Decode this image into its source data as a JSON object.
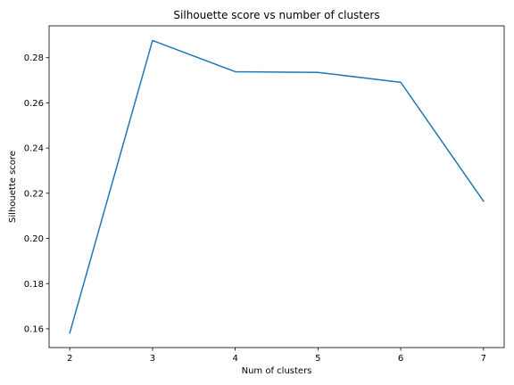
{
  "chart_data": {
    "type": "line",
    "title": "Silhouette score vs number of clusters",
    "xlabel": "Num of clusters",
    "ylabel": "Silhouette score",
    "x": [
      2,
      3,
      4,
      5,
      6,
      7
    ],
    "series": [
      {
        "values": [
          0.1582,
          0.2876,
          0.2738,
          0.2735,
          0.2691,
          0.2165
        ]
      }
    ],
    "xlim": [
      1.75,
      7.25
    ],
    "ylim": [
      0.1517,
      0.2941
    ],
    "xticks": [
      2,
      3,
      4,
      5,
      6,
      7
    ],
    "xtick_labels": [
      "2",
      "3",
      "4",
      "5",
      "6",
      "7"
    ],
    "yticks": [
      0.16,
      0.18,
      0.2,
      0.22,
      0.24,
      0.26,
      0.28
    ],
    "ytick_labels": [
      "0.16",
      "0.18",
      "0.20",
      "0.22",
      "0.24",
      "0.26",
      "0.28"
    ],
    "grid": false,
    "colors": {
      "line": "#1f77b4",
      "axes": "#000000"
    }
  }
}
